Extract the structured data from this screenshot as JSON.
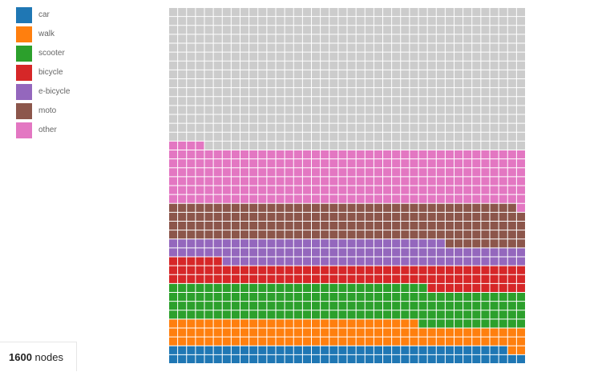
{
  "legend": {
    "items": [
      {
        "label": "car",
        "color": "#1f77b4"
      },
      {
        "label": "walk",
        "color": "#ff7f0e"
      },
      {
        "label": "scooter",
        "color": "#2ca02c"
      },
      {
        "label": "bicycle",
        "color": "#d62728"
      },
      {
        "label": "e-bicycle",
        "color": "#9467bd"
      },
      {
        "label": "moto",
        "color": "#8c564b"
      },
      {
        "label": "other",
        "color": "#e377c2"
      }
    ]
  },
  "status": {
    "node_count": "1600",
    "node_unit": "nodes"
  },
  "chart_data": {
    "type": "waffle",
    "grid_columns": 40,
    "grid_rows": 40,
    "total": 1600,
    "empty_color": "#cccccc",
    "fill_order": "bottom-up, row by row from left",
    "categories": [
      "car",
      "walk",
      "scooter",
      "bicycle",
      "e-bicycle",
      "moto",
      "other"
    ],
    "values": [
      78,
      110,
      161,
      97,
      105,
      168,
      245
    ],
    "colors": [
      "#1f77b4",
      "#ff7f0e",
      "#2ca02c",
      "#d62728",
      "#9467bd",
      "#8c564b",
      "#e377c2"
    ]
  }
}
